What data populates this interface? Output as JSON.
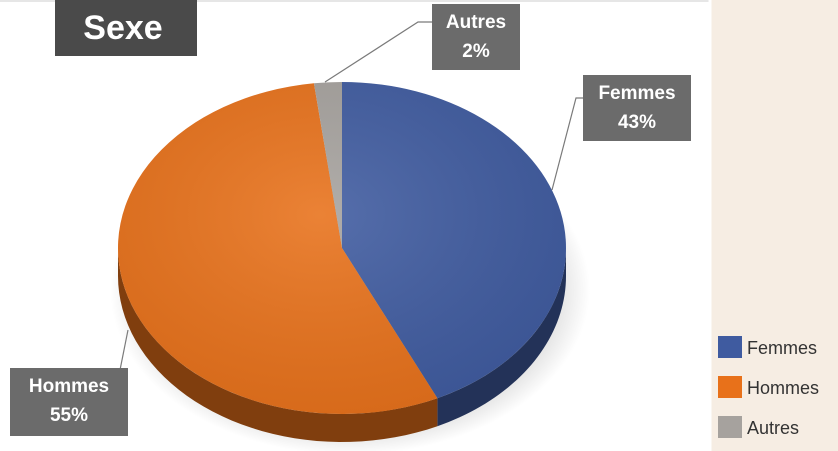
{
  "chart_data": {
    "type": "pie",
    "title": "Sexe",
    "categories": [
      "Femmes",
      "Hommes",
      "Autres"
    ],
    "values": [
      43,
      55,
      2
    ],
    "value_labels": [
      "43%",
      "55%",
      "2%"
    ],
    "colors": [
      "#3f5ba0",
      "#e8711a",
      "#a6a29e"
    ],
    "legend": "right"
  }
}
